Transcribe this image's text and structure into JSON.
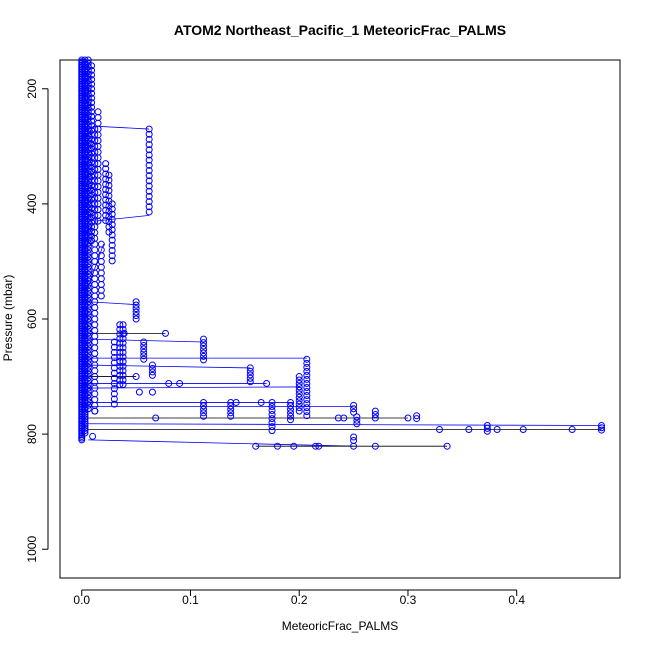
{
  "chart_data": {
    "type": "scatter",
    "title": "ATOM2 Northeast_Pacific_1 MeteoricFrac_PALMS",
    "xlabel": "MeteoricFrac_PALMS",
    "ylabel": "Pressure (mbar)",
    "xlim": [
      -0.02,
      0.495
    ],
    "ylim": [
      1050,
      150
    ],
    "y_reversed": true,
    "x_ticks": [
      0.0,
      0.1,
      0.2,
      0.3,
      0.4
    ],
    "x_tick_labels": [
      "0.0",
      "0.1",
      "0.2",
      "0.3",
      "0.4"
    ],
    "y_ticks": [
      200,
      400,
      600,
      800,
      1000
    ],
    "y_tick_labels": [
      "200",
      "400",
      "600",
      "800",
      "1000"
    ],
    "grid": false,
    "series_color": "#0000ff",
    "profile_columns": [
      {
        "x": 0.0,
        "p_from": 150,
        "p_to": 810,
        "step": 3
      },
      {
        "x": 0.003,
        "p_from": 150,
        "p_to": 800,
        "step": 4
      },
      {
        "x": 0.006,
        "p_from": 150,
        "p_to": 760,
        "step": 6
      },
      {
        "x": 0.009,
        "p_from": 160,
        "p_to": 470,
        "step": 8
      },
      {
        "x": 0.012,
        "p_from": 270,
        "p_to": 760,
        "step": 10
      },
      {
        "x": 0.015,
        "p_from": 240,
        "p_to": 430,
        "step": 10
      },
      {
        "x": 0.018,
        "p_from": 470,
        "p_to": 560,
        "step": 10
      },
      {
        "x": 0.022,
        "p_from": 330,
        "p_to": 430,
        "step": 9
      },
      {
        "x": 0.025,
        "p_from": 350,
        "p_to": 450,
        "step": 9
      },
      {
        "x": 0.028,
        "p_from": 400,
        "p_to": 500,
        "step": 9
      },
      {
        "x": 0.03,
        "p_from": 640,
        "p_to": 750,
        "step": 9
      },
      {
        "x": 0.035,
        "p_from": 610,
        "p_to": 720,
        "step": 8
      },
      {
        "x": 0.038,
        "p_from": 610,
        "p_to": 720,
        "step": 8
      },
      {
        "x": 0.05,
        "p_from": 570,
        "p_to": 600,
        "step": 6
      },
      {
        "x": 0.057,
        "p_from": 640,
        "p_to": 670,
        "step": 6
      },
      {
        "x": 0.065,
        "p_from": 680,
        "p_to": 700,
        "step": 6
      },
      {
        "x": 0.062,
        "p_from": 270,
        "p_to": 420,
        "step": 9
      },
      {
        "x": 0.112,
        "p_from": 635,
        "p_to": 675,
        "step": 6
      },
      {
        "x": 0.112,
        "p_from": 745,
        "p_to": 770,
        "step": 6
      },
      {
        "x": 0.137,
        "p_from": 745,
        "p_to": 770,
        "step": 6
      },
      {
        "x": 0.155,
        "p_from": 685,
        "p_to": 710,
        "step": 6
      },
      {
        "x": 0.175,
        "p_from": 745,
        "p_to": 800,
        "step": 7
      },
      {
        "x": 0.192,
        "p_from": 745,
        "p_to": 775,
        "step": 6
      },
      {
        "x": 0.2,
        "p_from": 700,
        "p_to": 760,
        "step": 6
      },
      {
        "x": 0.207,
        "p_from": 670,
        "p_to": 770,
        "step": 7
      },
      {
        "x": 0.25,
        "p_from": 750,
        "p_to": 765,
        "step": 6
      },
      {
        "x": 0.25,
        "p_from": 805,
        "p_to": 815,
        "step": 6
      },
      {
        "x": 0.253,
        "p_from": 770,
        "p_to": 785,
        "step": 6
      },
      {
        "x": 0.27,
        "p_from": 760,
        "p_to": 775,
        "step": 6
      },
      {
        "x": 0.308,
        "p_from": 768,
        "p_to": 775,
        "step": 5
      },
      {
        "x": 0.373,
        "p_from": 785,
        "p_to": 795,
        "step": 5
      },
      {
        "x": 0.478,
        "p_from": 785,
        "p_to": 795,
        "step": 4
      }
    ],
    "points": [
      {
        "x": 0.077,
        "p": 625
      },
      {
        "x": 0.039,
        "p": 625
      },
      {
        "x": 0.08,
        "p": 712
      },
      {
        "x": 0.09,
        "p": 712
      },
      {
        "x": 0.17,
        "p": 712
      },
      {
        "x": 0.053,
        "p": 727
      },
      {
        "x": 0.065,
        "p": 727
      },
      {
        "x": 0.068,
        "p": 772
      },
      {
        "x": 0.012,
        "p": 760
      },
      {
        "x": 0.01,
        "p": 804
      },
      {
        "x": 0.05,
        "p": 700
      },
      {
        "x": 0.142,
        "p": 745
      },
      {
        "x": 0.165,
        "p": 745
      },
      {
        "x": 0.236,
        "p": 772
      },
      {
        "x": 0.241,
        "p": 772
      },
      {
        "x": 0.3,
        "p": 772
      },
      {
        "x": 0.16,
        "p": 821
      },
      {
        "x": 0.18,
        "p": 821
      },
      {
        "x": 0.195,
        "p": 821
      },
      {
        "x": 0.215,
        "p": 821
      },
      {
        "x": 0.218,
        "p": 821
      },
      {
        "x": 0.25,
        "p": 821
      },
      {
        "x": 0.27,
        "p": 821
      },
      {
        "x": 0.336,
        "p": 821
      },
      {
        "x": 0.329,
        "p": 792
      },
      {
        "x": 0.356,
        "p": 792
      },
      {
        "x": 0.382,
        "p": 792
      },
      {
        "x": 0.406,
        "p": 792
      },
      {
        "x": 0.451,
        "p": 792
      }
    ],
    "connectors": [
      {
        "x1": 0.012,
        "p1": 265,
        "x2": 0.062,
        "p2": 270,
        "color": "#0000ff"
      },
      {
        "x1": 0.012,
        "p1": 430,
        "x2": 0.062,
        "p2": 420,
        "color": "#0000ff"
      },
      {
        "x1": 0.006,
        "p1": 570,
        "x2": 0.05,
        "p2": 575,
        "color": "#0000ff"
      },
      {
        "x1": 0.006,
        "p1": 625,
        "x2": 0.077,
        "p2": 625,
        "color": "#000000"
      },
      {
        "x1": 0.006,
        "p1": 635,
        "x2": 0.112,
        "p2": 640,
        "color": "#0000ff"
      },
      {
        "x1": 0.006,
        "p1": 668,
        "x2": 0.207,
        "p2": 668,
        "color": "#0000ff"
      },
      {
        "x1": 0.006,
        "p1": 680,
        "x2": 0.155,
        "p2": 685,
        "color": "#0000ff"
      },
      {
        "x1": 0.006,
        "p1": 700,
        "x2": 0.05,
        "p2": 700,
        "color": "#000000"
      },
      {
        "x1": 0.006,
        "p1": 712,
        "x2": 0.17,
        "p2": 712,
        "color": "#0000ff"
      },
      {
        "x1": 0.006,
        "p1": 720,
        "x2": 0.2,
        "p2": 718,
        "color": "#0000ff"
      },
      {
        "x1": 0.006,
        "p1": 745,
        "x2": 0.195,
        "p2": 745,
        "color": "#0000ff"
      },
      {
        "x1": 0.006,
        "p1": 752,
        "x2": 0.25,
        "p2": 752,
        "color": "#0000ff"
      },
      {
        "x1": 0.006,
        "p1": 772,
        "x2": 0.3,
        "p2": 772,
        "color": "#000000"
      },
      {
        "x1": 0.006,
        "p1": 782,
        "x2": 0.478,
        "p2": 785,
        "color": "#0000ff"
      },
      {
        "x1": 0.006,
        "p1": 792,
        "x2": 0.478,
        "p2": 792,
        "color": "#000000"
      },
      {
        "x1": 0.006,
        "p1": 810,
        "x2": 0.25,
        "p2": 821,
        "color": "#0000ff"
      },
      {
        "x1": 0.16,
        "p1": 821,
        "x2": 0.336,
        "p2": 821,
        "color": "#000000"
      },
      {
        "x1": 0.003,
        "p1": 560,
        "x2": 0.02,
        "p2": 470,
        "color": "#0000ff"
      }
    ]
  }
}
